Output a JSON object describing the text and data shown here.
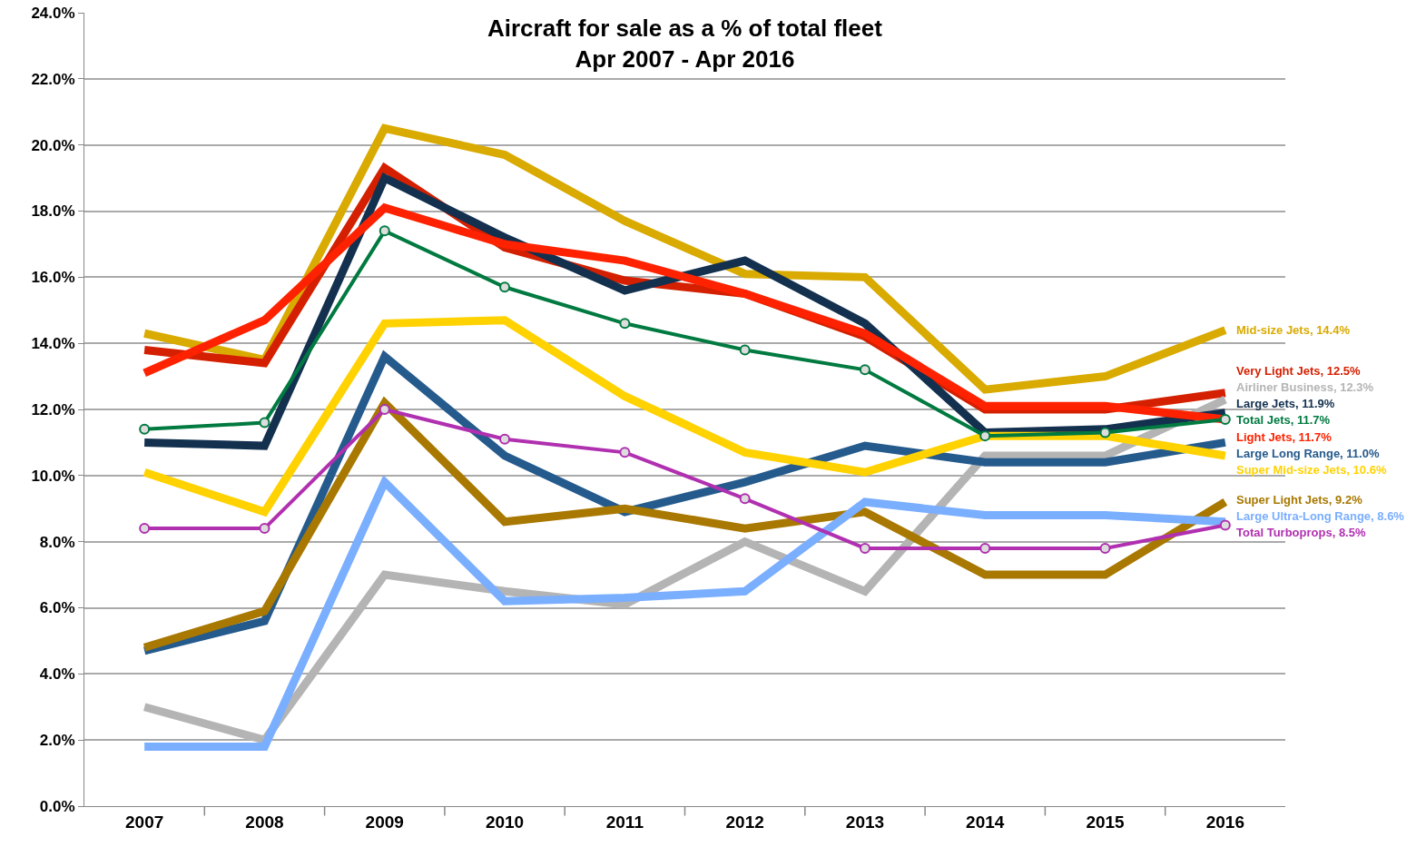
{
  "chart_data": {
    "type": "line",
    "title": "Aircraft for sale as a % of total fleet",
    "subtitle": "Apr 2007 - Apr 2016",
    "categories": [
      "2007",
      "2008",
      "2009",
      "2010",
      "2011",
      "2012",
      "2013",
      "2014",
      "2015",
      "2016"
    ],
    "series": [
      {
        "name": "Mid-size Jets,",
        "color": "#d9aa00",
        "values": [
          14.3,
          13.5,
          20.5,
          19.7,
          17.7,
          16.1,
          16.0,
          12.6,
          13.0,
          14.4
        ],
        "value_labels": [
          null,
          null,
          null,
          null,
          null,
          null,
          null,
          null,
          null,
          "14.4%"
        ]
      },
      {
        "name": "Very Light Jets,",
        "color": "#d42000",
        "values": [
          13.8,
          13.4,
          19.3,
          16.9,
          15.9,
          15.5,
          14.2,
          12.0,
          12.0,
          12.5
        ],
        "value_labels": [
          null,
          null,
          null,
          null,
          null,
          null,
          null,
          null,
          null,
          "12.5%"
        ]
      },
      {
        "name": "Airliner Business,",
        "color": "#b4b4b4",
        "values": [
          3.0,
          2.0,
          7.0,
          6.5,
          6.1,
          8.0,
          6.5,
          10.6,
          10.6,
          12.3
        ],
        "value_labels": [
          null,
          null,
          null,
          null,
          null,
          null,
          null,
          null,
          null,
          "12.3%"
        ]
      },
      {
        "name": "Large Jets,",
        "color": "#13304f",
        "values": [
          11.0,
          10.9,
          19.0,
          17.2,
          15.6,
          16.5,
          14.6,
          11.3,
          11.4,
          11.9
        ],
        "value_labels": [
          null,
          null,
          null,
          null,
          null,
          null,
          null,
          null,
          null,
          "11.9%"
        ]
      },
      {
        "name": "Total Jets,",
        "color": "#007a40",
        "marker": "circle",
        "values": [
          11.4,
          11.6,
          17.4,
          15.7,
          14.6,
          13.8,
          13.2,
          11.2,
          11.3,
          11.7
        ],
        "value_labels": [
          null,
          null,
          null,
          null,
          null,
          null,
          null,
          null,
          null,
          "11.7%"
        ]
      },
      {
        "name": "Light Jets,",
        "color": "#ff2200",
        "values": [
          13.1,
          14.7,
          18.1,
          17.0,
          16.5,
          15.5,
          14.3,
          12.1,
          12.1,
          11.7
        ],
        "value_labels": [
          null,
          null,
          null,
          null,
          null,
          null,
          null,
          null,
          null,
          "11.7%"
        ]
      },
      {
        "name": "Large Long Range,",
        "color": "#255a8c",
        "values": [
          4.7,
          5.6,
          13.6,
          10.6,
          8.9,
          9.8,
          10.9,
          10.4,
          10.4,
          11.0
        ],
        "value_labels": [
          null,
          null,
          null,
          null,
          null,
          null,
          null,
          null,
          null,
          "11.0%"
        ]
      },
      {
        "name": "Super Mid-size Jets,",
        "color": "#ffd200",
        "values": [
          10.1,
          8.9,
          14.6,
          14.7,
          12.4,
          10.7,
          10.1,
          11.2,
          11.2,
          10.6
        ],
        "value_labels": [
          null,
          null,
          null,
          null,
          null,
          null,
          null,
          null,
          null,
          "10.6%"
        ]
      },
      {
        "name": "Super Light Jets,",
        "color": "#a87800",
        "values": [
          4.8,
          5.9,
          12.2,
          8.6,
          9.0,
          8.4,
          8.9,
          7.0,
          7.0,
          9.2
        ],
        "value_labels": [
          null,
          null,
          null,
          null,
          null,
          null,
          null,
          null,
          null,
          "9.2%"
        ]
      },
      {
        "name": "Large Ultra-Long Range,",
        "color": "#7aaeff",
        "values": [
          1.8,
          1.8,
          9.8,
          6.2,
          6.3,
          6.5,
          9.2,
          8.8,
          8.8,
          8.6
        ],
        "value_labels": [
          null,
          null,
          null,
          null,
          null,
          null,
          null,
          null,
          null,
          "8.6%"
        ]
      },
      {
        "name": "Total Turboprops,",
        "color": "#b030b0",
        "marker": "circle",
        "values": [
          8.4,
          8.4,
          12.0,
          11.1,
          10.7,
          9.3,
          7.8,
          7.8,
          7.8,
          8.5
        ],
        "value_labels": [
          null,
          null,
          null,
          null,
          null,
          null,
          null,
          null,
          null,
          "8.5%"
        ]
      }
    ],
    "ylim": [
      0,
      24
    ],
    "yticks": [
      {
        "value": 0,
        "label": "0.0%"
      },
      {
        "value": 2,
        "label": "2.0%"
      },
      {
        "value": 4,
        "label": "4.0%"
      },
      {
        "value": 6,
        "label": "6.0%"
      },
      {
        "value": 8,
        "label": "8.0%"
      },
      {
        "value": 10,
        "label": "10.0%"
      },
      {
        "value": 12,
        "label": "12.0%"
      },
      {
        "value": 14,
        "label": "14.0%"
      },
      {
        "value": 16,
        "label": "16.0%"
      },
      {
        "value": 18,
        "label": "18.0%"
      },
      {
        "value": 20,
        "label": "20.0%"
      },
      {
        "value": 22,
        "label": "22.0%"
      },
      {
        "value": 24,
        "label": "24.0%"
      }
    ],
    "grid": "y",
    "legend": false,
    "marker": "none",
    "line_style": "solid"
  }
}
